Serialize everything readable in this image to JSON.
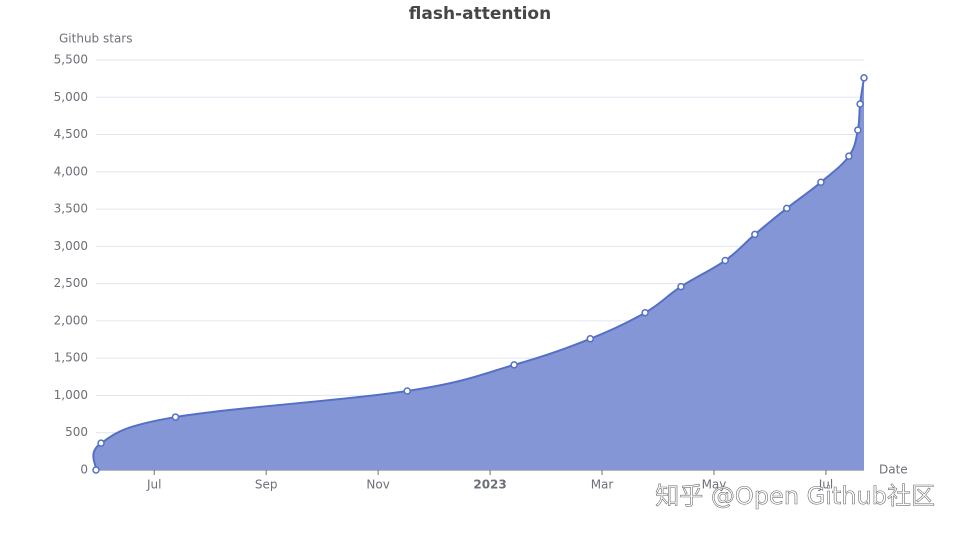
{
  "chart_data": {
    "type": "area",
    "title": "flash-attention",
    "y_label": "Github stars",
    "x_label": "Date",
    "watermark": "知乎 @Open Github社区",
    "x": [
      -1.04,
      -0.95,
      0.38,
      4.52,
      6.43,
      7.79,
      8.77,
      9.41,
      10.2,
      10.73,
      11.3,
      11.91,
      12.41,
      12.57,
      12.61,
      12.68
    ],
    "series": [
      {
        "name": "flash-attention",
        "color": "#5470c6",
        "values": [
          0,
          360,
          710,
          1060,
          1410,
          1760,
          2110,
          2460,
          2810,
          3160,
          3510,
          3860,
          4210,
          4560,
          4910,
          5260
        ]
      }
    ],
    "xlim": [
      -1.04,
      12.68
    ],
    "xticks": [
      {
        "value": 0,
        "label": "Jul"
      },
      {
        "value": 2,
        "label": "Sep"
      },
      {
        "value": 4,
        "label": "Nov"
      },
      {
        "value": 6,
        "label": "2023"
      },
      {
        "value": 8,
        "label": "Mar"
      },
      {
        "value": 10,
        "label": "May"
      },
      {
        "value": 12,
        "label": "Jul"
      }
    ],
    "ylim": [
      0,
      5500
    ],
    "yticks": [
      0,
      500,
      {
        "value": 1000,
        "label": "1,000"
      },
      {
        "value": 1500,
        "label": "1,500"
      },
      {
        "value": 2000,
        "label": "2,000"
      },
      {
        "value": 2500,
        "label": "2,500"
      },
      {
        "value": 3000,
        "label": "3,000"
      },
      {
        "value": 3500,
        "label": "3,500"
      },
      {
        "value": 4000,
        "label": "4,000"
      },
      {
        "value": 4500,
        "label": "4,500"
      },
      {
        "value": 5000,
        "label": "5,000"
      },
      {
        "value": 5500,
        "label": "5,500"
      }
    ],
    "grid": true,
    "area_color": "#8596d6"
  }
}
